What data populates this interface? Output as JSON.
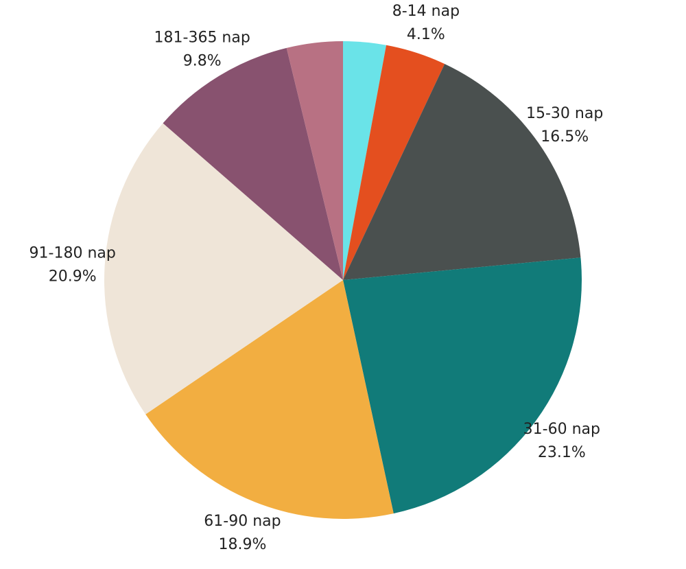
{
  "chart_data": {
    "type": "pie",
    "start_angle_deg": 0,
    "direction": "clockwise",
    "slices": [
      {
        "label": "",
        "value": 2.9,
        "value_label": "",
        "color": "#6ae3e8"
      },
      {
        "label": "8-14 nap",
        "value": 4.1,
        "value_label": "4.1%",
        "color": "#e44f1f"
      },
      {
        "label": "15-30 nap",
        "value": 16.5,
        "value_label": "16.5%",
        "color": "#4a504f"
      },
      {
        "label": "31-60 nap",
        "value": 23.1,
        "value_label": "23.1%",
        "color": "#117b79"
      },
      {
        "label": "61-90 nap",
        "value": 18.9,
        "value_label": "18.9%",
        "color": "#f2ae41"
      },
      {
        "label": "91-180 nap",
        "value": 20.9,
        "value_label": "20.9%",
        "color": "#efe5d8"
      },
      {
        "label": "181-365 nap",
        "value": 9.8,
        "value_label": "9.8%",
        "color": "#88526f"
      },
      {
        "label": "",
        "value": 3.8,
        "value_label": "",
        "color": "#b87183"
      }
    ]
  }
}
